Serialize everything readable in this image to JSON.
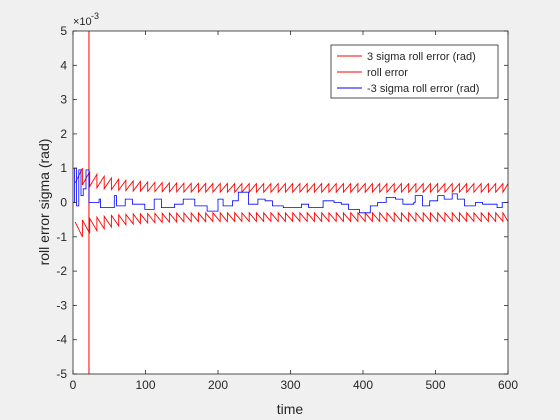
{
  "chart_data": {
    "type": "line",
    "xlabel": "time",
    "ylabel": "roll error sigma (rad)",
    "y_exponent_label": "×10",
    "y_exponent_power": "-3",
    "xlim": [
      0,
      600
    ],
    "ylim": [
      -5,
      5
    ],
    "xticks": [
      0,
      100,
      200,
      300,
      400,
      500,
      600
    ],
    "yticks": [
      -5,
      -4,
      -3,
      -2,
      -1,
      0,
      1,
      2,
      3,
      4,
      5
    ],
    "xtick_labels": [
      "0",
      "100",
      "200",
      "300",
      "400",
      "500",
      "600"
    ],
    "ytick_labels": [
      "-5",
      "-4",
      "-3",
      "-2",
      "-1",
      "0",
      "1",
      "2",
      "3",
      "4",
      "5"
    ],
    "grid": false,
    "legend_position": "top-right",
    "series": [
      {
        "name": "3 sigma roll error (rad)",
        "color": "#ff0000",
        "shape": "sawtooth",
        "start": 3,
        "end": 600,
        "period": 10,
        "decay_per_step": 0.25,
        "initial_peak": 1.0,
        "steady_peak": 0.55,
        "steady_trough": 0.3,
        "scale": 1
      },
      {
        "name": "roll error",
        "color": "#ff0000",
        "shape": "spike",
        "x": 22,
        "y_values": [
          -5,
          5
        ]
      },
      {
        "name": "-3 sigma roll error (rad)",
        "color": "#0000ff",
        "shape": "steps",
        "points": [
          [
            0,
            0
          ],
          [
            2,
            1.0
          ],
          [
            5,
            -0.1
          ],
          [
            8,
            0.95
          ],
          [
            11,
            0.2
          ],
          [
            14,
            0.4
          ],
          [
            18,
            0.95
          ],
          [
            22,
            0.0
          ],
          [
            36,
            0.1
          ],
          [
            38,
            -0.15
          ],
          [
            55,
            -0.15
          ],
          [
            57,
            0.2
          ],
          [
            60,
            -0.1
          ],
          [
            70,
            -0.1
          ],
          [
            72,
            0.1
          ],
          [
            80,
            0.1
          ],
          [
            82,
            -0.05
          ],
          [
            97,
            -0.05
          ],
          [
            99,
            -0.2
          ],
          [
            110,
            -0.2
          ],
          [
            112,
            0.1
          ],
          [
            120,
            0.1
          ],
          [
            122,
            -0.15
          ],
          [
            138,
            -0.15
          ],
          [
            140,
            -0.05
          ],
          [
            150,
            -0.05
          ],
          [
            152,
            0.1
          ],
          [
            165,
            0.1
          ],
          [
            168,
            -0.1
          ],
          [
            183,
            -0.1
          ],
          [
            185,
            -0.25
          ],
          [
            198,
            -0.25
          ],
          [
            200,
            0.1
          ],
          [
            205,
            0.1
          ],
          [
            207,
            -0.1
          ],
          [
            218,
            -0.1
          ],
          [
            220,
            0.05
          ],
          [
            225,
            0.05
          ],
          [
            228,
            0.3
          ],
          [
            240,
            0.3
          ],
          [
            242,
            -0.05
          ],
          [
            252,
            -0.05
          ],
          [
            255,
            0.1
          ],
          [
            262,
            0.1
          ],
          [
            265,
            0.05
          ],
          [
            275,
            -0.1
          ],
          [
            290,
            -0.15
          ],
          [
            300,
            -0.15
          ],
          [
            315,
            -0.05
          ],
          [
            325,
            -0.15
          ],
          [
            345,
            0.05
          ],
          [
            360,
            0.0
          ],
          [
            370,
            -0.05
          ],
          [
            380,
            -0.2
          ],
          [
            395,
            -0.3
          ],
          [
            408,
            -0.3
          ],
          [
            410,
            -0.1
          ],
          [
            420,
            0.0
          ],
          [
            432,
            0.15
          ],
          [
            445,
            0.1
          ],
          [
            455,
            -0.05
          ],
          [
            470,
            0.0
          ],
          [
            472,
            0.2
          ],
          [
            480,
            0.2
          ],
          [
            482,
            -0.1
          ],
          [
            490,
            -0.1
          ],
          [
            492,
            0.05
          ],
          [
            500,
            0.05
          ],
          [
            503,
            0.2
          ],
          [
            510,
            0.2
          ],
          [
            512,
            0.1
          ],
          [
            520,
            0.1
          ],
          [
            523,
            0.25
          ],
          [
            530,
            0.1
          ],
          [
            540,
            -0.1
          ],
          [
            552,
            -0.1
          ],
          [
            555,
            0.0
          ],
          [
            565,
            -0.05
          ],
          [
            580,
            -0.05
          ],
          [
            585,
            -0.15
          ],
          [
            592,
            0.0
          ],
          [
            600,
            0.05
          ]
        ]
      }
    ]
  }
}
